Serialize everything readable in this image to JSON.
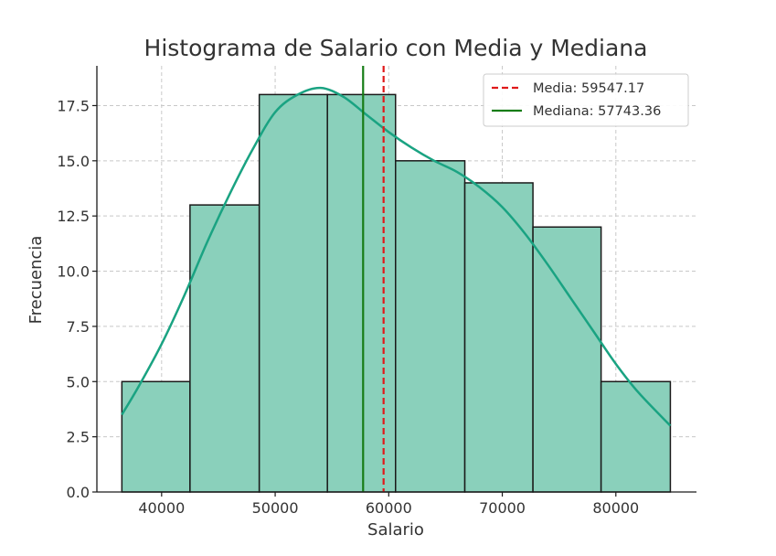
{
  "chart_data": {
    "type": "bar",
    "title": "Histograma de Salario con Media y Mediana",
    "xlabel": "Salario",
    "ylabel": "Frecuencia",
    "xlim": [
      34300,
      87100
    ],
    "ylim": [
      0,
      19.3
    ],
    "xticks": [
      40000,
      50000,
      60000,
      70000,
      80000
    ],
    "yticks": [
      0.0,
      2.5,
      5.0,
      7.5,
      10.0,
      12.5,
      15.0,
      17.5
    ],
    "bins": [
      {
        "start": 36500,
        "end": 42500,
        "count": 5
      },
      {
        "start": 42500,
        "end": 48600,
        "count": 13
      },
      {
        "start": 48600,
        "end": 54600,
        "count": 18
      },
      {
        "start": 54600,
        "end": 60600,
        "count": 18
      },
      {
        "start": 60600,
        "end": 66700,
        "count": 15
      },
      {
        "start": 66700,
        "end": 72700,
        "count": 14
      },
      {
        "start": 72700,
        "end": 78700,
        "count": 12
      },
      {
        "start": 78700,
        "end": 84800,
        "count": 5
      }
    ],
    "kde": {
      "x": [
        36500,
        38000,
        40000,
        42000,
        44000,
        46000,
        48000,
        50000,
        52000,
        54000,
        56000,
        58000,
        60000,
        62000,
        64000,
        66000,
        68000,
        70000,
        72000,
        74000,
        76000,
        78000,
        80000,
        82000,
        84800
      ],
      "y": [
        3.5,
        4.8,
        6.7,
        8.9,
        11.3,
        13.5,
        15.5,
        17.2,
        18.0,
        18.3,
        17.9,
        17.1,
        16.3,
        15.6,
        15.0,
        14.5,
        13.8,
        12.9,
        11.7,
        10.3,
        8.8,
        7.3,
        5.8,
        4.5,
        3.0
      ]
    },
    "grid": true,
    "legend_position": "top-right",
    "vlines": [
      {
        "name": "Media: 59547.17",
        "value": 59547.17,
        "color": "#e0191a",
        "style": "dashed"
      },
      {
        "name": "Mediana: 57743.36",
        "value": 57743.36,
        "color": "#177d17",
        "style": "solid"
      }
    ],
    "colors": {
      "bar_fill": "#8ad0bb",
      "bar_edge": "#1a1a1a",
      "kde": "#1aa382"
    }
  }
}
